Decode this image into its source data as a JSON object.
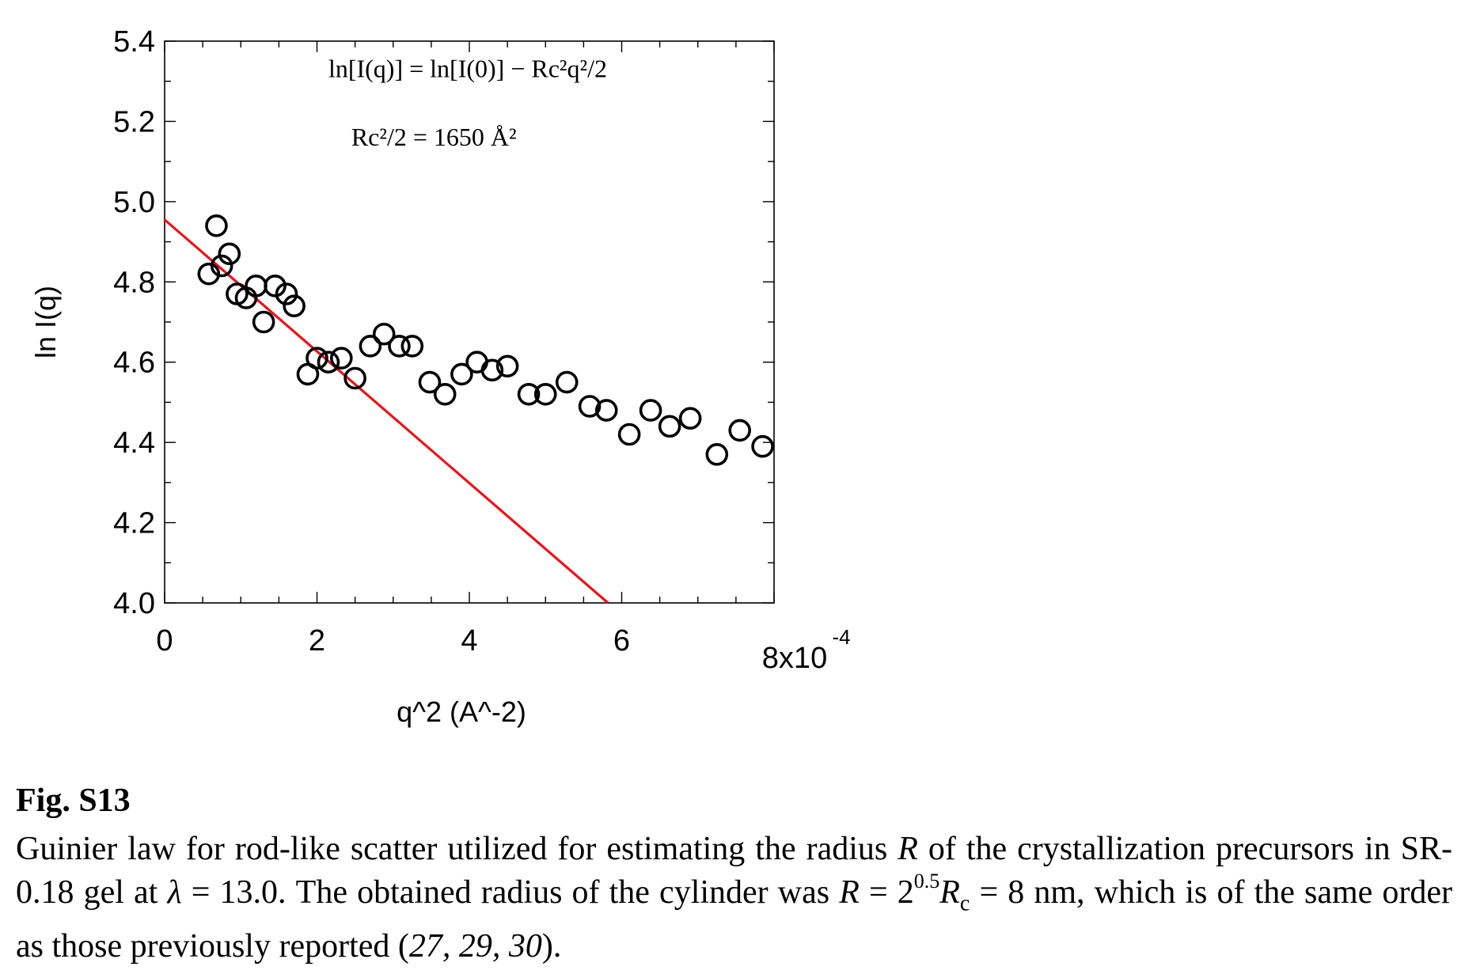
{
  "chart_data": {
    "type": "scatter",
    "ylabel": "ln I(q)",
    "xlabel": "q^2 (A^-2)",
    "x_tick_labels": [
      "0",
      "2",
      "4",
      "6",
      "8x10"
    ],
    "x_tick_exponent": "-4",
    "y_tick_labels": [
      "4.0",
      "4.2",
      "4.4",
      "4.6",
      "4.8",
      "5.0",
      "5.2",
      "5.4"
    ],
    "xlim": [
      0,
      0.0008
    ],
    "ylim": [
      4.0,
      5.4
    ],
    "x_scale_factor": "x10^-4",
    "equation_line1": "ln[I(q)] = ln[I(0)] − Rc²q²/2",
    "equation_line2": "Rc²/2 = 1650 Å²",
    "series": [
      {
        "marker": "open-circle",
        "color": "#000000",
        "points": [
          [
            5.8e-05,
            4.82
          ],
          [
            6.8e-05,
            4.94
          ],
          [
            7.5e-05,
            4.84
          ],
          [
            8.5e-05,
            4.87
          ],
          [
            9.5e-05,
            4.77
          ],
          [
            0.000107,
            4.76
          ],
          [
            0.00012,
            4.79
          ],
          [
            0.00013,
            4.7
          ],
          [
            0.000145,
            4.79
          ],
          [
            0.00016,
            4.77
          ],
          [
            0.00017,
            4.74
          ],
          [
            0.000188,
            4.57
          ],
          [
            0.0002,
            4.61
          ],
          [
            0.000215,
            4.6
          ],
          [
            0.000232,
            4.61
          ],
          [
            0.00025,
            4.56
          ],
          [
            0.00027,
            4.64
          ],
          [
            0.000288,
            4.67
          ],
          [
            0.000308,
            4.64
          ],
          [
            0.000325,
            4.64
          ],
          [
            0.000348,
            4.55
          ],
          [
            0.000368,
            4.52
          ],
          [
            0.00039,
            4.57
          ],
          [
            0.00041,
            4.6
          ],
          [
            0.00043,
            4.58
          ],
          [
            0.00045,
            4.59
          ],
          [
            0.000478,
            4.52
          ],
          [
            0.0005,
            4.52
          ],
          [
            0.000528,
            4.55
          ],
          [
            0.000558,
            4.49
          ],
          [
            0.00058,
            4.48
          ],
          [
            0.00061,
            4.42
          ],
          [
            0.000638,
            4.48
          ],
          [
            0.000663,
            4.44
          ],
          [
            0.00069,
            4.46
          ],
          [
            0.000725,
            4.37
          ],
          [
            0.000755,
            4.43
          ],
          [
            0.000785,
            4.39
          ]
        ]
      },
      {
        "type": "line",
        "color": "#e8141b",
        "points": [
          [
            0.0,
            4.955
          ],
          [
            0.000582,
            4.0
          ]
        ]
      }
    ]
  },
  "caption": {
    "title": "Fig. S13",
    "body": "Guinier law for rod-like scatter utilized for estimating the radius R of the crystallization precursors in SR-0.18 gel at λ = 13.0. The obtained radius of the cylinder was R = 2^0.5 Rc = 8 nm, which is of the same order as those previously reported (27, 29, 30).",
    "part1": "Guinier law for rod-like scatter utilized for estimating the radius ",
    "R": "R",
    "part2": " of the crystallization precursors in SR-0.18 gel at ",
    "lambda": "λ",
    "part3": " = 13.0. The obtained radius of the cylinder was ",
    "part4": " = 2",
    "exp": "0.5",
    "Rc": "R",
    "c_sub": "c",
    "part5": " = 8 nm, which is of the same order as those previously reported (",
    "refs": "27, 29, 30",
    "part6": ")."
  }
}
